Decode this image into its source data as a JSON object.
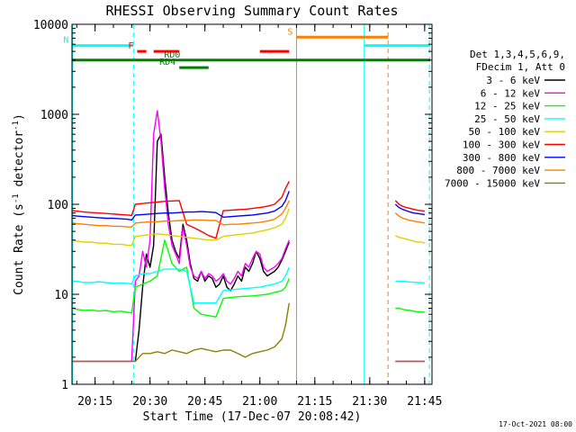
{
  "chart_data": {
    "type": "line",
    "title": "RHESSI Observing Summary Count Rates",
    "xlabel": "Start Time (17-Dec-07 20:08:42)",
    "ylabel": "Count Rate (s",
    "ylabel_sup1": "-1",
    "ylabel_mid": " detector",
    "ylabel_sup2": "-1",
    "ylabel_end": ")",
    "yscale": "log",
    "xlim_min": [
      8.7,
      107.0
    ],
    "ylim": [
      1,
      10000
    ],
    "x_ticks": [
      {
        "value": 15,
        "label": "20:15"
      },
      {
        "value": 30,
        "label": "20:30"
      },
      {
        "value": 45,
        "label": "20:45"
      },
      {
        "value": 60,
        "label": "21:00"
      },
      {
        "value": 75,
        "label": "21:15"
      },
      {
        "value": 90,
        "label": "21:30"
      },
      {
        "value": 105,
        "label": "21:45"
      }
    ],
    "y_ticks": [
      {
        "value": 1,
        "label": "1"
      },
      {
        "value": 10,
        "label": "10"
      },
      {
        "value": 100,
        "label": "100"
      },
      {
        "value": 1000,
        "label": "1000"
      },
      {
        "value": 10000,
        "label": "10000"
      }
    ],
    "legend_header": [
      "Det 1,3,4,5,6,9,",
      "FDecim 1, Att 0"
    ],
    "series": [
      {
        "name": "3 - 6 keV",
        "color": "#000000",
        "x": [
          26,
          27,
          28,
          29,
          30,
          31,
          32,
          33,
          34,
          35,
          36,
          37,
          38,
          39,
          40,
          41,
          42,
          43,
          44,
          45,
          46,
          47,
          48,
          49,
          50,
          51,
          52,
          53,
          54,
          55,
          56,
          57,
          58,
          59,
          60,
          61,
          62,
          63,
          64,
          65,
          66,
          67,
          68
        ],
        "y": [
          1.8,
          4,
          12,
          28,
          20,
          35,
          500,
          600,
          200,
          80,
          40,
          30,
          25,
          60,
          40,
          22,
          15,
          14,
          18,
          14,
          16,
          15,
          12,
          13,
          16,
          12,
          11,
          13,
          16,
          14,
          20,
          18,
          22,
          30,
          25,
          18,
          16,
          17,
          18,
          20,
          24,
          30,
          38
        ]
      },
      {
        "name": "6 - 12 keV",
        "color": "#ff00ff",
        "x": [
          8.8,
          10,
          12,
          14,
          16,
          18,
          20,
          22,
          24,
          25,
          26,
          27,
          28,
          29,
          30,
          31,
          32,
          33,
          34,
          35,
          36,
          37,
          38,
          39,
          40,
          41,
          42,
          43,
          44,
          45,
          46,
          47,
          48,
          49,
          50,
          51,
          52,
          53,
          54,
          55,
          56,
          57,
          58,
          59,
          60,
          61,
          62,
          63,
          64,
          65,
          66,
          67,
          68
        ],
        "y": [
          1.8,
          1.8,
          1.8,
          1.8,
          1.8,
          1.8,
          1.8,
          1.8,
          1.8,
          1.8,
          14,
          16,
          30,
          20,
          40,
          600,
          1100,
          500,
          150,
          60,
          35,
          28,
          22,
          55,
          35,
          20,
          16,
          15,
          18,
          15,
          17,
          16,
          14,
          15,
          17,
          14,
          13,
          15,
          18,
          16,
          22,
          20,
          25,
          30,
          28,
          20,
          18,
          19,
          20,
          22,
          25,
          32,
          40
        ]
      },
      {
        "name": "12 - 25 keV",
        "color": "#00ff00",
        "x": [
          8.8,
          10,
          12,
          14,
          16,
          18,
          20,
          22,
          24,
          25,
          26,
          28,
          30,
          32,
          34,
          35,
          36,
          38,
          40,
          42,
          44,
          46,
          48,
          50,
          52,
          54,
          56,
          58,
          60,
          62,
          64,
          66,
          67,
          68
        ],
        "y": [
          7,
          6.8,
          6.6,
          6.7,
          6.5,
          6.6,
          6.4,
          6.5,
          6.3,
          6.2,
          12,
          13,
          14,
          16,
          40,
          30,
          22,
          18,
          20,
          7,
          6,
          5.8,
          5.6,
          9,
          9.2,
          9.4,
          9.5,
          9.6,
          9.8,
          10,
          10.5,
          11,
          12,
          15
        ]
      },
      {
        "name": "25 - 50 keV",
        "color": "#00ffff",
        "x": [
          8.8,
          10,
          12,
          14,
          16,
          18,
          20,
          22,
          24,
          25,
          26,
          28,
          30,
          32,
          34,
          36,
          38,
          40,
          42,
          44,
          46,
          48,
          50,
          52,
          54,
          56,
          58,
          60,
          62,
          64,
          66,
          67,
          68
        ],
        "y": [
          14,
          14,
          13.5,
          13.5,
          13.8,
          13.5,
          13.3,
          13.4,
          13.2,
          13,
          16,
          17,
          17,
          18,
          19,
          19,
          19,
          18,
          8,
          8,
          8,
          8,
          11,
          11.2,
          11.4,
          11.6,
          11.8,
          12,
          12.5,
          13,
          14,
          16,
          20
        ]
      },
      {
        "name": "50 - 100 keV",
        "color": "#e0d000",
        "x": [
          8.8,
          10,
          12,
          14,
          16,
          18,
          20,
          22,
          24,
          25,
          26,
          28,
          30,
          32,
          34,
          36,
          38,
          40,
          42,
          44,
          46,
          48,
          50,
          52,
          54,
          56,
          58,
          60,
          62,
          64,
          66,
          67,
          68
        ],
        "y": [
          40,
          39,
          38,
          38,
          37,
          37,
          36,
          36,
          35,
          35,
          44,
          45,
          46,
          47,
          46,
          45,
          44,
          43,
          42,
          41,
          40,
          40,
          44,
          45,
          46,
          47,
          48,
          50,
          52,
          55,
          60,
          70,
          90
        ]
      },
      {
        "name": "100 - 300 keV",
        "color": "#ff0000",
        "x": [
          8.8,
          10,
          12,
          14,
          16,
          18,
          20,
          22,
          24,
          25,
          26,
          28,
          30,
          32,
          34,
          36,
          38,
          40,
          42,
          44,
          46,
          48,
          50,
          52,
          54,
          56,
          58,
          60,
          62,
          64,
          66,
          67,
          68
        ],
        "y": [
          85,
          84,
          82,
          81,
          80,
          79,
          78,
          77,
          76,
          75,
          100,
          102,
          104,
          106,
          108,
          109,
          110,
          60,
          55,
          50,
          45,
          42,
          85,
          86,
          87,
          88,
          90,
          92,
          95,
          100,
          120,
          150,
          180
        ]
      },
      {
        "name": "300 - 800 keV",
        "color": "#0000ff",
        "x": [
          8.8,
          10,
          12,
          14,
          16,
          18,
          20,
          22,
          24,
          25,
          26,
          28,
          30,
          32,
          34,
          36,
          38,
          40,
          42,
          44,
          46,
          48,
          50,
          52,
          54,
          56,
          58,
          60,
          62,
          64,
          66,
          67,
          68
        ],
        "y": [
          75,
          74,
          73,
          72,
          71,
          70,
          70,
          69,
          68,
          67,
          76,
          77,
          78,
          79,
          80,
          80,
          81,
          82,
          82,
          83,
          82,
          81,
          72,
          73,
          74,
          75,
          76,
          78,
          80,
          84,
          95,
          110,
          140
        ]
      },
      {
        "name": "800 - 7000 keV",
        "color": "#ff8000",
        "x": [
          8.8,
          10,
          12,
          14,
          16,
          18,
          20,
          22,
          24,
          25,
          26,
          28,
          30,
          32,
          34,
          36,
          38,
          40,
          42,
          44,
          46,
          48,
          50,
          52,
          54,
          56,
          58,
          60,
          62,
          64,
          66,
          67,
          68
        ],
        "y": [
          62,
          61,
          60,
          59,
          58,
          58,
          57,
          57,
          56,
          56,
          62,
          63,
          64,
          64,
          65,
          65,
          66,
          66,
          67,
          67,
          66,
          66,
          59,
          60,
          60,
          61,
          62,
          63,
          65,
          68,
          78,
          90,
          110
        ]
      },
      {
        "name": "7000 - 15000 keV",
        "color": "#8b8000",
        "x": [
          8.8,
          10,
          12,
          14,
          16,
          18,
          20,
          22,
          24,
          26,
          28,
          30,
          32,
          34,
          36,
          38,
          40,
          42,
          44,
          46,
          48,
          50,
          52,
          54,
          56,
          58,
          60,
          62,
          64,
          66,
          67,
          68
        ],
        "y": [
          1.8,
          1.8,
          1.8,
          1.8,
          1.8,
          1.8,
          1.8,
          1.8,
          1.8,
          1.8,
          2.2,
          2.2,
          2.3,
          2.2,
          2.4,
          2.3,
          2.2,
          2.4,
          2.5,
          2.4,
          2.3,
          2.4,
          2.4,
          2.2,
          2.0,
          2.2,
          2.3,
          2.4,
          2.6,
          3.2,
          4.5,
          8
        ]
      },
      {
        "name": "6 - 12 keV (after SAA)",
        "color": "#ff00ff",
        "legend": false,
        "x": [
          97,
          98,
          99,
          100,
          101,
          102,
          103,
          104,
          105
        ],
        "y": [
          1.8,
          1.8,
          1.8,
          1.8,
          1.8,
          1.8,
          1.8,
          1.8,
          1.8
        ]
      },
      {
        "name": "7000 - 15000 keV (after SAA)",
        "color": "#8b8000",
        "legend": false,
        "x": [
          97,
          98,
          99,
          100,
          101,
          102,
          103,
          104,
          105
        ],
        "y": [
          1.8,
          1.8,
          1.8,
          1.8,
          1.8,
          1.8,
          1.8,
          1.8,
          1.8
        ]
      },
      {
        "name": "12 - 25 keV (after SAA)",
        "color": "#00ff00",
        "legend": false,
        "x": [
          97,
          98,
          99,
          100,
          101,
          102,
          103,
          104,
          105
        ],
        "y": [
          7,
          7,
          6.8,
          6.7,
          6.6,
          6.5,
          6.4,
          6.4,
          6.3
        ]
      },
      {
        "name": "25 - 50 keV (after SAA)",
        "color": "#00ffff",
        "legend": false,
        "x": [
          97,
          98,
          99,
          100,
          101,
          102,
          103,
          104,
          105
        ],
        "y": [
          14,
          14,
          14,
          13.8,
          13.7,
          13.6,
          13.5,
          13.5,
          13.4
        ]
      },
      {
        "name": "50 - 100 keV (after SAA)",
        "color": "#e0d000",
        "legend": false,
        "x": [
          97,
          98,
          99,
          100,
          101,
          102,
          103,
          104,
          105
        ],
        "y": [
          45,
          43,
          42,
          41,
          40,
          39,
          38,
          38,
          37
        ]
      },
      {
        "name": "100 - 300 keV (after SAA)",
        "color": "#ff0000",
        "legend": false,
        "x": [
          97,
          98,
          99,
          100,
          101,
          102,
          103,
          104,
          105
        ],
        "y": [
          110,
          100,
          95,
          92,
          90,
          88,
          86,
          85,
          84
        ]
      },
      {
        "name": "300 - 800 keV (after SAA)",
        "color": "#0000ff",
        "legend": false,
        "x": [
          97,
          98,
          99,
          100,
          101,
          102,
          103,
          104,
          105
        ],
        "y": [
          100,
          92,
          88,
          85,
          82,
          80,
          79,
          78,
          77
        ]
      },
      {
        "name": "800 - 7000 keV (after SAA)",
        "color": "#ff8000",
        "legend": false,
        "x": [
          97,
          98,
          99,
          100,
          101,
          102,
          103,
          104,
          105
        ],
        "y": [
          80,
          74,
          70,
          68,
          66,
          65,
          64,
          63,
          62
        ]
      }
    ],
    "flag_bars": [
      {
        "label": "N",
        "color": "#00ffff",
        "y": 5800,
        "segments": [
          [
            8.8,
            25.5
          ],
          [
            88.5,
            106.5
          ]
        ]
      },
      {
        "label": "F",
        "color": "#ff0000",
        "y": 5000,
        "segments": [
          [
            26.5,
            29
          ],
          [
            31,
            38
          ],
          [
            60,
            68
          ]
        ]
      },
      {
        "label": "S",
        "color": "#ff8000",
        "y": 7200,
        "segments": [
          [
            70,
            95
          ]
        ]
      },
      {
        "label": "RD0",
        "color": "#008000",
        "y": 4000,
        "segments": [
          [
            8.8,
            106.5
          ]
        ]
      },
      {
        "label": "RD4",
        "color": "#008000",
        "y": 3300,
        "segments": [
          [
            38,
            46
          ]
        ]
      }
    ],
    "vertical_lines": [
      {
        "x": 8.9,
        "color": "#00ffff",
        "style": "solid"
      },
      {
        "x": 25.5,
        "color": "#00ffff",
        "style": "dashed"
      },
      {
        "x": 70,
        "color": "#ff8000",
        "style": "solid"
      },
      {
        "x": 88.5,
        "color": "#00ffff",
        "style": "solid"
      },
      {
        "x": 95,
        "color": "#ff8000",
        "style": "dashed"
      },
      {
        "x": 106.3,
        "color": "#00ffff",
        "style": "dashed"
      }
    ],
    "footer_date": "17-Oct-2021 08:00"
  }
}
